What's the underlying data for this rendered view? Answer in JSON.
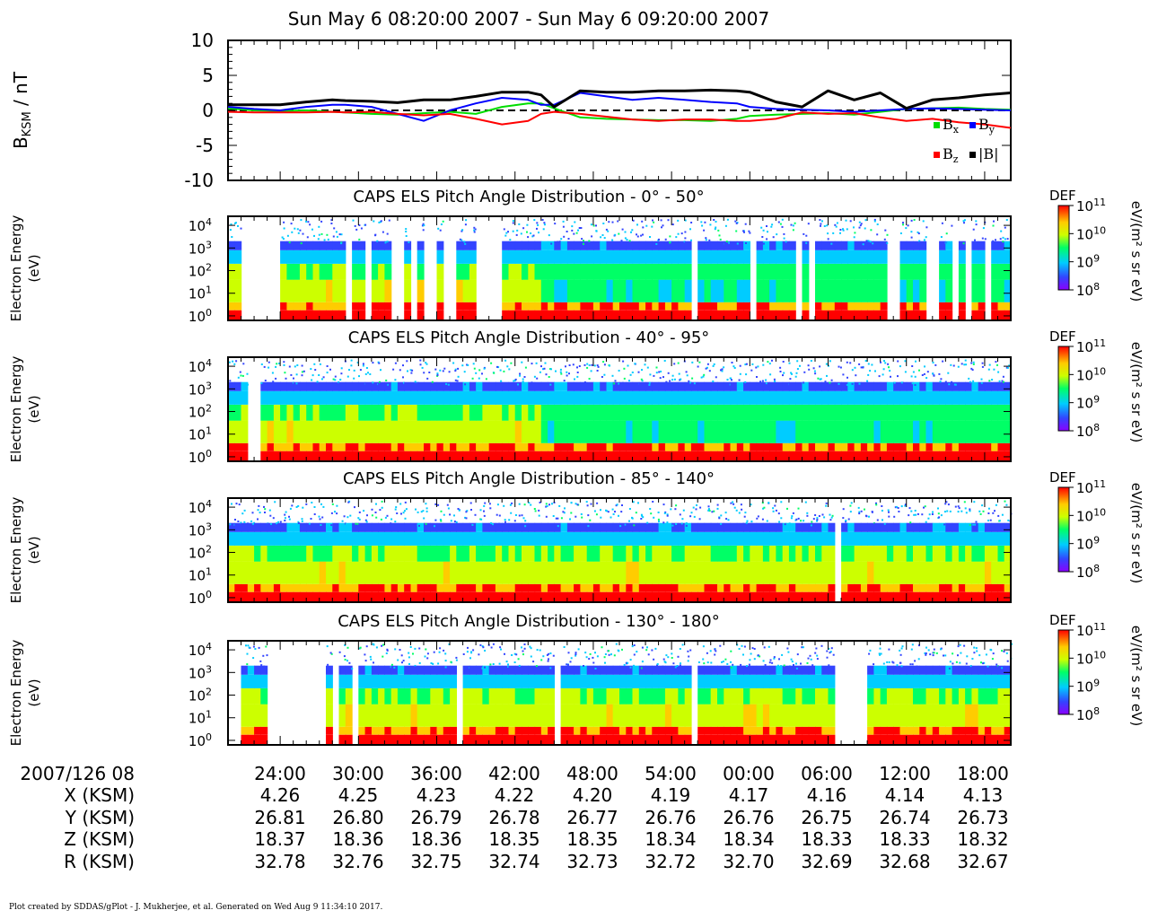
{
  "title": "Sun May 6 08:20:00 2007 - Sun May 6 09:20:00 2007",
  "footer": "Plot created by SDDAS/gPlot - J. Mukherjee, et al.  Generated on Wed Aug 9 11:34:10 2017.",
  "colors": {
    "bx": "#00dd00",
    "by": "#0000ff",
    "bz": "#ff0000",
    "bmag": "#000000"
  },
  "chart_data": [
    {
      "type": "line",
      "ylabel": "B_KSM / nT",
      "ylim": [
        -10,
        10
      ],
      "yticks": [
        "10",
        "5",
        "0",
        "-5",
        "-10"
      ],
      "ytick_values": [
        10,
        5,
        0,
        -5,
        -10
      ],
      "zero_line": "dashed",
      "legend": [
        "Bx",
        "By",
        "Bz",
        "|B|"
      ],
      "legend_placement": "bottom-right",
      "x_minutes": [
        0,
        4,
        8,
        12,
        16,
        18,
        22,
        26,
        30,
        34,
        38,
        42,
        46,
        48,
        50,
        54,
        58,
        62,
        66,
        70,
        74,
        78,
        80,
        84,
        88,
        92,
        96,
        100,
        104,
        108,
        112,
        116,
        120
      ],
      "series": [
        {
          "name": "Bx",
          "color": "#00dd00",
          "values": [
            0.3,
            0.0,
            -0.1,
            0.0,
            -0.2,
            -0.3,
            -0.5,
            -0.6,
            -0.4,
            -0.2,
            -0.5,
            0.5,
            1.0,
            1.0,
            0.3,
            -1.0,
            -1.2,
            -1.3,
            -1.4,
            -1.4,
            -1.5,
            -1.2,
            -0.8,
            -0.6,
            -0.5,
            -0.4,
            -0.6,
            -0.2,
            0.2,
            0.3,
            0.4,
            0.2,
            0.1
          ]
        },
        {
          "name": "By",
          "color": "#0000ff",
          "values": [
            0.5,
            0.2,
            0.0,
            0.5,
            0.8,
            0.8,
            0.5,
            -0.5,
            -1.5,
            0.0,
            1.0,
            1.8,
            1.5,
            0.8,
            0.8,
            2.5,
            2.0,
            1.5,
            1.8,
            1.5,
            1.2,
            1.0,
            0.5,
            0.2,
            0.1,
            0.0,
            -0.2,
            0.0,
            0.2,
            0.3,
            0.2,
            0.1,
            0.0
          ]
        },
        {
          "name": "Bz",
          "color": "#ff0000",
          "values": [
            -0.2,
            -0.3,
            -0.3,
            -0.3,
            -0.2,
            -0.3,
            -0.2,
            -0.5,
            -0.7,
            -0.5,
            -1.2,
            -2.0,
            -1.5,
            -0.5,
            -0.2,
            -0.5,
            -0.9,
            -1.3,
            -1.5,
            -1.3,
            -1.3,
            -1.5,
            -1.5,
            -1.2,
            -0.3,
            -0.5,
            -0.4,
            -1.0,
            -1.5,
            -1.2,
            -1.7,
            -2.0,
            -2.5
          ]
        },
        {
          "name": "|B|",
          "color": "#000000",
          "values": [
            0.8,
            0.8,
            0.8,
            1.2,
            1.5,
            1.4,
            1.3,
            1.1,
            1.5,
            1.5,
            2.0,
            2.6,
            2.6,
            2.2,
            0.5,
            2.8,
            2.6,
            2.6,
            2.8,
            2.8,
            2.9,
            2.8,
            2.6,
            1.2,
            0.5,
            2.8,
            1.5,
            2.5,
            0.3,
            1.5,
            1.8,
            2.2,
            2.5
          ]
        }
      ]
    },
    {
      "type": "heatmap",
      "title": "CAPS ELS Pitch Angle Distribution - 0° - 50°",
      "ylabel": "Electron Energy",
      "yunit": "(eV)",
      "yscale": "log",
      "yticks": [
        "10⁰",
        "10¹",
        "10²",
        "10³",
        "10⁴"
      ],
      "ylim_log10": [
        -0.2,
        4.4
      ],
      "gaps_minutes": [
        [
          2,
          8
        ],
        [
          17.5,
          19
        ],
        [
          21,
          22
        ],
        [
          25,
          26.5
        ],
        [
          28,
          29
        ],
        [
          29.6,
          30.2
        ],
        [
          30.8,
          31.4
        ],
        [
          33,
          35
        ],
        [
          38,
          41.5
        ],
        [
          71,
          72
        ],
        [
          79.5,
          80.5
        ],
        [
          87,
          88
        ],
        [
          88.6,
          89.2
        ],
        [
          100.5,
          101.5
        ],
        [
          101.8,
          102.8
        ],
        [
          107,
          109
        ],
        [
          111,
          111.6
        ],
        [
          113,
          113.6
        ],
        [
          115.5,
          116.2
        ]
      ],
      "colorbar": {
        "label": "DEF",
        "unit": "eV/(m² s sr eV)",
        "ticks": [
          "10⁸",
          "10⁹",
          "10¹⁰",
          "10¹¹"
        ]
      }
    },
    {
      "type": "heatmap",
      "title": "CAPS ELS Pitch Angle Distribution - 40° - 95°",
      "ylabel": "Electron Energy",
      "yunit": "(eV)",
      "yscale": "log",
      "yticks": [
        "10⁰",
        "10¹",
        "10²",
        "10³",
        "10⁴"
      ],
      "ylim_log10": [
        -0.2,
        4.4
      ],
      "gaps_minutes": [
        [
          2.8,
          3.2
        ],
        [
          3.8,
          4.6
        ]
      ],
      "colorbar": {
        "label": "DEF",
        "unit": "eV/(m² s sr eV)",
        "ticks": [
          "10⁸",
          "10⁹",
          "10¹⁰",
          "10¹¹"
        ]
      }
    },
    {
      "type": "heatmap",
      "title": "CAPS ELS Pitch Angle Distribution - 85° - 140°",
      "ylabel": "Electron Energy",
      "yunit": "(eV)",
      "yscale": "log",
      "yticks": [
        "10⁰",
        "10¹",
        "10²",
        "10³",
        "10⁴"
      ],
      "ylim_log10": [
        -0.2,
        4.4
      ],
      "gaps_minutes": [
        [
          9.5,
          9.8
        ],
        [
          10.3,
          10.6
        ],
        [
          93,
          93.6
        ]
      ],
      "colorbar": {
        "label": "DEF",
        "unit": "eV/(m² s sr eV)",
        "ticks": [
          "10⁸",
          "10⁹",
          "10¹⁰",
          "10¹¹"
        ]
      }
    },
    {
      "type": "heatmap",
      "title": "CAPS ELS Pitch Angle Distribution - 130° - 180°",
      "ylabel": "Electron Energy",
      "yunit": "(eV)",
      "yscale": "log",
      "yticks": [
        "10⁰",
        "10¹",
        "10²",
        "10³",
        "10⁴"
      ],
      "ylim_log10": [
        -0.2,
        4.4
      ],
      "gaps_minutes": [
        [
          0,
          1.3
        ],
        [
          6,
          14.5
        ],
        [
          16,
          16.6
        ],
        [
          17.2,
          17.8
        ],
        [
          19,
          19.6
        ],
        [
          20.3,
          21
        ],
        [
          35,
          35.5
        ],
        [
          50,
          50.5
        ],
        [
          71,
          71.5
        ],
        [
          93,
          98
        ]
      ],
      "colorbar": {
        "label": "DEF",
        "unit": "eV/(m² s sr eV)",
        "ticks": [
          "10⁸",
          "10⁹",
          "10¹⁰",
          "10¹¹"
        ]
      }
    }
  ],
  "ephemeris": {
    "rows": [
      {
        "label": "2007/126 08",
        "values": [
          "24:00",
          "30:00",
          "36:00",
          "42:00",
          "48:00",
          "54:00",
          "00:00",
          "06:00",
          "12:00",
          "18:00"
        ]
      },
      {
        "label": "X (KSM)",
        "values": [
          "4.26",
          "4.25",
          "4.23",
          "4.22",
          "4.20",
          "4.19",
          "4.17",
          "4.16",
          "4.14",
          "4.13"
        ]
      },
      {
        "label": "Y (KSM)",
        "values": [
          "26.81",
          "26.80",
          "26.79",
          "26.78",
          "26.77",
          "26.76",
          "26.76",
          "26.75",
          "26.74",
          "26.73"
        ]
      },
      {
        "label": "Z (KSM)",
        "values": [
          "18.37",
          "18.36",
          "18.36",
          "18.35",
          "18.35",
          "18.34",
          "18.34",
          "18.33",
          "18.33",
          "18.32"
        ]
      },
      {
        "label": "R (KSM)",
        "values": [
          "32.78",
          "32.76",
          "32.75",
          "32.74",
          "32.73",
          "32.72",
          "32.70",
          "32.69",
          "32.68",
          "32.67"
        ]
      }
    ]
  }
}
